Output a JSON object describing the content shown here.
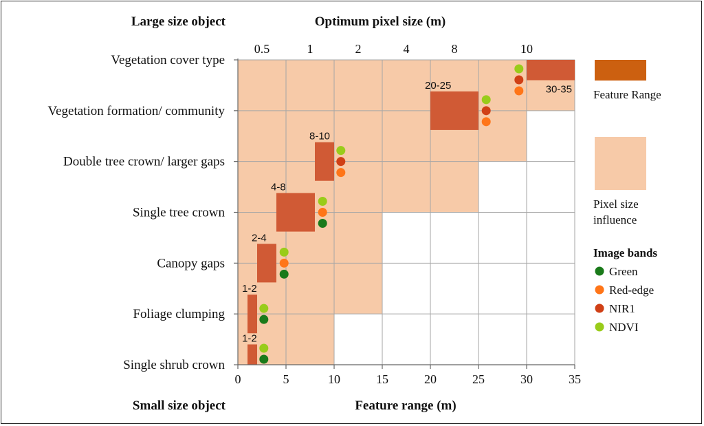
{
  "chart_data": {
    "type": "bar",
    "corner_labels": {
      "top_left": "Large size object",
      "bottom_left": "Small size object"
    },
    "top_axis_title": "Optimum pixel size (m)",
    "xlabel": "Feature range (m)",
    "xlim": [
      0,
      35
    ],
    "x_ticks": [
      "0",
      "5",
      "10",
      "15",
      "20",
      "25",
      "30",
      "35"
    ],
    "top_ticks": [
      {
        "label": "0.5",
        "x": 2.5
      },
      {
        "label": "1",
        "x": 7.5
      },
      {
        "label": "2",
        "x": 12.5
      },
      {
        "label": "4",
        "x": 17.5
      },
      {
        "label": "8",
        "x": 22.5
      },
      {
        "label": "10",
        "x": 30
      }
    ],
    "categories": [
      "Vegetation cover type",
      "Vegetation formation/ community",
      "Double tree crown/ larger gaps",
      "Single tree crown",
      "Canopy gaps",
      "Foliage clumping",
      "Single shrub crown"
    ],
    "pixel_size_influence": [
      {
        "category": "Vegetation cover type",
        "x_max": 35
      },
      {
        "category": "Vegetation formation/ community",
        "x_max": 30
      },
      {
        "category": "Double tree crown/ larger gaps",
        "x_max": 25
      },
      {
        "category": "Single tree crown",
        "x_max": 15
      },
      {
        "category": "Canopy gaps",
        "x_max": 15
      },
      {
        "category": "Foliage clumping",
        "x_max": 10
      },
      {
        "category": "Single shrub crown",
        "x_max": 5
      }
    ],
    "feature_range": [
      {
        "category": "Vegetation cover type",
        "min": 30,
        "max": 35,
        "label": "30-35"
      },
      {
        "category": "Vegetation formation/ community",
        "min": 20,
        "max": 25,
        "label": "20-25"
      },
      {
        "category": "Double tree crown/ larger gaps",
        "min": 8,
        "max": 10,
        "label": "8-10"
      },
      {
        "category": "Single tree crown",
        "min": 4,
        "max": 8,
        "label": "4-8"
      },
      {
        "category": "Canopy gaps",
        "min": 2,
        "max": 4,
        "label": "2-4"
      },
      {
        "category": "Foliage clumping",
        "min": 1,
        "max": 2,
        "label": "1-2"
      },
      {
        "category": "Single shrub crown",
        "min": 1,
        "max": 2,
        "label": "1-2"
      }
    ],
    "image_bands": [
      {
        "category": "Vegetation cover type",
        "x": 29.2,
        "bands": [
          "NDVI",
          "NIR1",
          "Red-edge"
        ]
      },
      {
        "category": "Vegetation formation/ community",
        "x": 25.8,
        "bands": [
          "NDVI",
          "NIR1",
          "Red-edge"
        ]
      },
      {
        "category": "Double tree crown/ larger gaps",
        "x": 10.7,
        "bands": [
          "NDVI",
          "NIR1",
          "Red-edge"
        ]
      },
      {
        "category": "Single tree crown",
        "x": 8.8,
        "bands": [
          "NDVI",
          "Red-edge",
          "Green"
        ]
      },
      {
        "category": "Canopy gaps",
        "x": 4.8,
        "bands": [
          "NDVI",
          "Red-edge",
          "Green"
        ]
      },
      {
        "category": "Foliage clumping",
        "x": 2.7,
        "bands": [
          "NDVI",
          "Green"
        ]
      },
      {
        "category": "Single shrub crown",
        "x": 2.7,
        "bands": [
          "NDVI",
          "Green"
        ]
      }
    ],
    "legend": {
      "feature_range": "Feature Range",
      "pixel_size_influence": "Pixel size influence",
      "bands_title": "Image bands",
      "bands": [
        {
          "name": "Green",
          "color": "#1a7a1a"
        },
        {
          "name": "Red-edge",
          "color": "#ff7518"
        },
        {
          "name": "NIR1",
          "color": "#d04016"
        },
        {
          "name": "NDVI",
          "color": "#99cc1a"
        }
      ]
    },
    "colors": {
      "feature_range": "#d05a35",
      "feature_range_legend": "#cc6010",
      "pixel_size_influence": "#f7caa8",
      "grid": "#a6a6a6"
    }
  }
}
